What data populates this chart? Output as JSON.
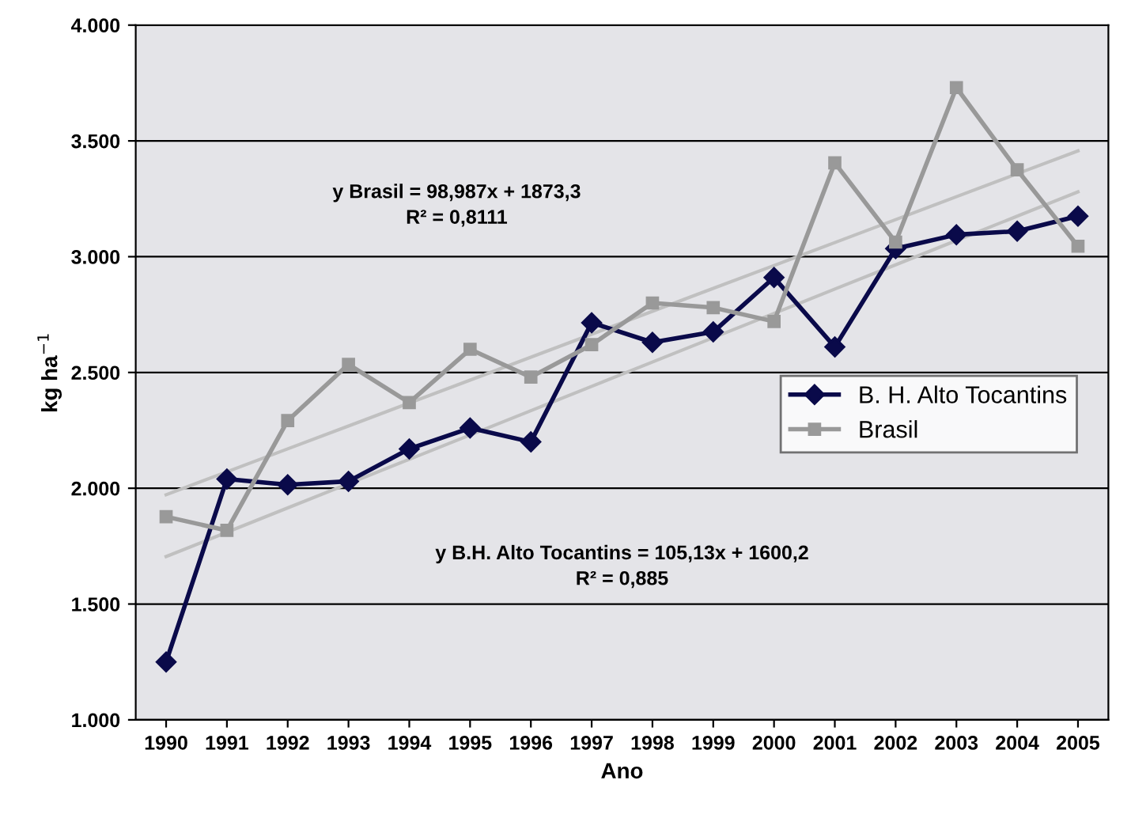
{
  "chart_data": {
    "type": "line",
    "xlabel": "Ano",
    "ylabel": "kg ha$^{−1}$",
    "categories": [
      "1990",
      "1991",
      "1992",
      "1993",
      "1994",
      "1995",
      "1996",
      "1997",
      "1998",
      "1999",
      "2000",
      "2001",
      "2002",
      "2003",
      "2004",
      "2005"
    ],
    "series": [
      {
        "name": "B. H. Alto Tocantins",
        "color": "#0a0a4a",
        "marker": "diamond",
        "values": [
          1250,
          2040,
          2015,
          2030,
          2170,
          2260,
          2200,
          2715,
          2630,
          2675,
          2910,
          2610,
          3035,
          3095,
          3110,
          3175
        ]
      },
      {
        "name": "Brasil",
        "color": "#999999",
        "marker": "square",
        "values": [
          1877,
          1818,
          2292,
          2535,
          2370,
          2600,
          2480,
          2620,
          2800,
          2780,
          2720,
          3405,
          3063,
          3730,
          3375,
          3045
        ]
      },
      {
        "type": "line",
        "color": "#c0c0c0",
        "marker": "none",
        "values": [
          1972,
          2071,
          2170,
          2269,
          2368,
          2467,
          2566,
          2665,
          2764,
          2863,
          2962,
          3061,
          3160,
          3259,
          3358,
          3457
        ]
      },
      {
        "type": "line",
        "color": "#c0c0c0",
        "marker": "none",
        "values": [
          1705,
          1810,
          1915,
          2020,
          2125,
          2230,
          2335,
          2440,
          2545,
          2650,
          2755,
          2860,
          2965,
          3070,
          3175,
          3280
        ]
      }
    ],
    "ylim": [
      1000,
      4000
    ],
    "yticks": [
      {
        "value": 1000,
        "label": "1.000"
      },
      {
        "value": 1500,
        "label": "1.500"
      },
      {
        "value": 2000,
        "label": "2.000"
      },
      {
        "value": 2500,
        "label": "2.500"
      },
      {
        "value": 3000,
        "label": "3.000"
      },
      {
        "value": 3500,
        "label": "3.500"
      },
      {
        "value": 4000,
        "label": "4.000"
      }
    ],
    "grid": "y",
    "legend": "right",
    "annotations": [
      "y Brasil = 98,987x + 1873,3\nR² = 0,8111",
      "y B.H. Alto Tocantins = 105,13x + 1600,2\nR² = 0,885"
    ]
  }
}
